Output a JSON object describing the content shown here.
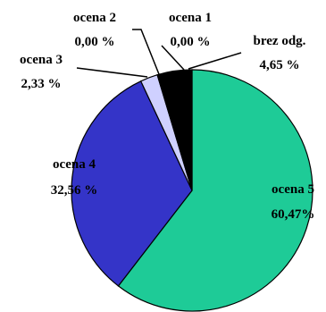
{
  "chart_data": {
    "type": "pie",
    "title": "",
    "slices": [
      {
        "name": "ocena 5",
        "percent_label": "60,47%",
        "value": 60.47,
        "color": "#1ecb97"
      },
      {
        "name": "ocena 4",
        "percent_label": "32,56 %",
        "value": 32.56,
        "color": "#3434c8"
      },
      {
        "name": "ocena 3",
        "percent_label": "2,33 %",
        "value": 2.33,
        "color": "#cfd0ff"
      },
      {
        "name": "ocena 2",
        "percent_label": "0,00 %",
        "value": 0.0,
        "color": "#ffffff"
      },
      {
        "name": "ocena 1",
        "percent_label": "0,00 %",
        "value": 0.0,
        "color": "#ffffff"
      },
      {
        "name": "brez odg.",
        "percent_label": "4,65 %",
        "value": 4.65,
        "color": "#000000"
      }
    ],
    "legend": "none"
  }
}
